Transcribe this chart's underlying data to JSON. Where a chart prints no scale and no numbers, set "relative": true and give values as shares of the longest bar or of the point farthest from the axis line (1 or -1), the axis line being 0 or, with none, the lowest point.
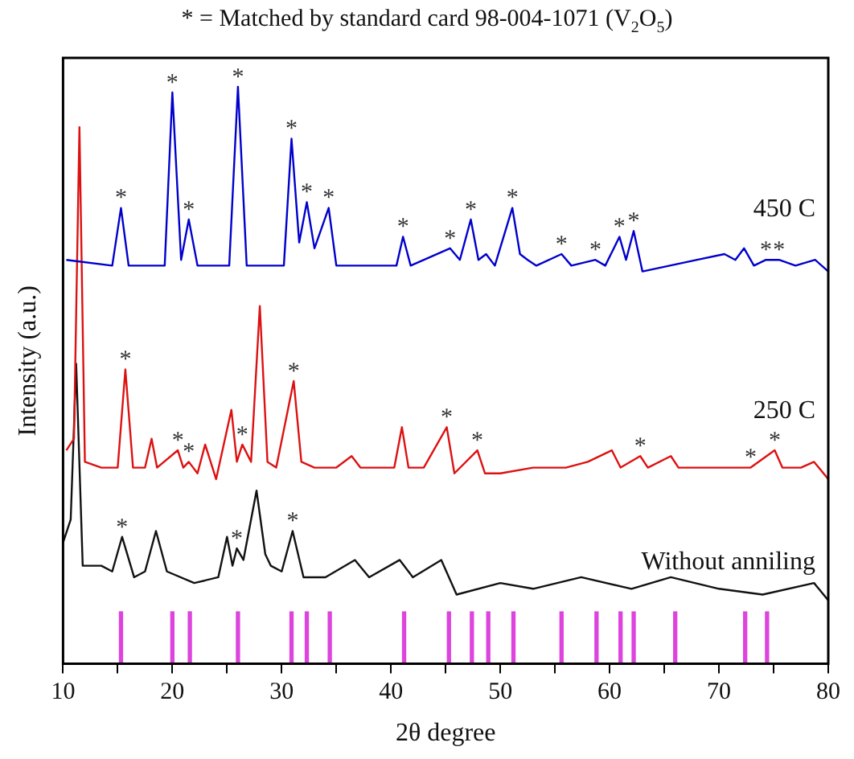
{
  "chart_data": {
    "type": "line",
    "relative": true,
    "title": "* = Matched by standard card 98-004-1071 (V$_{2}$O$_{5}$)",
    "xlabel": "2θ degree",
    "ylabel": "Intensity (a.u.)",
    "xlim": [
      10,
      80
    ],
    "xticks": [
      10,
      {
        "value": 15,
        "label": null
      },
      20,
      {
        "value": 25,
        "label": null
      },
      30,
      {
        "value": 35,
        "label": null
      },
      40,
      {
        "value": 45,
        "label": null
      },
      50,
      {
        "value": 55,
        "label": null
      },
      60,
      {
        "value": 65,
        "label": null
      },
      70,
      {
        "value": 75,
        "label": null
      },
      80
    ],
    "grid": false,
    "legend": false,
    "marker": "none",
    "line_style": "solid",
    "series": [
      {
        "name": "450 C",
        "color": "#0000cc",
        "x": [
          10.3,
          14.5,
          15.3,
          16.0,
          19.3,
          20.0,
          20.8,
          21.5,
          22.3,
          25.2,
          26.0,
          26.8,
          30.2,
          30.9,
          31.6,
          32.3,
          33.0,
          34.3,
          35.0,
          40.5,
          41.1,
          41.8,
          45.4,
          46.3,
          47.3,
          48.0,
          48.7,
          49.5,
          51.1,
          51.8,
          52.5,
          53.3,
          55.6,
          56.5,
          58.7,
          59.6,
          60.9,
          61.5,
          62.2,
          63.0,
          68,
          70.5,
          71.5,
          72.3,
          73.2,
          74.3,
          75.5,
          77,
          78.8,
          80
        ],
        "values": [
          0.7,
          0.69,
          0.79,
          0.69,
          0.69,
          0.99,
          0.7,
          0.77,
          0.69,
          0.69,
          1.0,
          0.69,
          0.69,
          0.91,
          0.73,
          0.8,
          0.72,
          0.79,
          0.69,
          0.69,
          0.74,
          0.69,
          0.72,
          0.7,
          0.77,
          0.7,
          0.71,
          0.69,
          0.79,
          0.71,
          0.7,
          0.69,
          0.71,
          0.69,
          0.7,
          0.69,
          0.74,
          0.7,
          0.75,
          0.68,
          0.7,
          0.71,
          0.7,
          0.72,
          0.69,
          0.7,
          0.7,
          0.69,
          0.7,
          0.68
        ]
      },
      {
        "name": "250 C",
        "color": "#dd1111",
        "x": [
          10.3,
          11.0,
          11.5,
          12.0,
          13.5,
          15.0,
          15.7,
          16.4,
          17.5,
          18.1,
          18.6,
          20.5,
          21.0,
          21.5,
          22.3,
          23.0,
          24.0,
          25.4,
          25.9,
          26.4,
          27.2,
          28.0,
          28.7,
          29.5,
          31.1,
          31.8,
          33.0,
          35,
          36.4,
          37.2,
          40.3,
          41.0,
          41.6,
          43,
          45.1,
          45.8,
          47.9,
          48.6,
          50,
          53,
          56,
          58,
          60.2,
          61,
          62.8,
          63.5,
          65.6,
          66.3,
          69,
          72.9,
          75.1,
          75.8,
          77.5,
          78.7,
          80
        ],
        "values": [
          0.37,
          0.39,
          0.93,
          0.35,
          0.34,
          0.34,
          0.51,
          0.34,
          0.34,
          0.39,
          0.34,
          0.37,
          0.34,
          0.35,
          0.33,
          0.38,
          0.32,
          0.44,
          0.35,
          0.38,
          0.35,
          0.62,
          0.35,
          0.34,
          0.49,
          0.35,
          0.34,
          0.34,
          0.36,
          0.34,
          0.34,
          0.41,
          0.34,
          0.34,
          0.41,
          0.33,
          0.37,
          0.33,
          0.33,
          0.34,
          0.34,
          0.35,
          0.37,
          0.34,
          0.36,
          0.34,
          0.36,
          0.34,
          0.34,
          0.34,
          0.37,
          0.34,
          0.34,
          0.35,
          0.32
        ]
      },
      {
        "name": "Without anniling",
        "color": "#111111",
        "x": [
          10.0,
          10.7,
          11.2,
          11.8,
          13.5,
          14.5,
          15.4,
          16.5,
          17.5,
          18.5,
          19.5,
          22,
          24.2,
          25.0,
          25.5,
          25.9,
          26.5,
          27.7,
          28.5,
          29,
          30.0,
          31.0,
          32,
          34,
          36.7,
          38,
          40.8,
          42,
          44.6,
          46,
          50,
          53,
          57.4,
          62,
          65.6,
          70,
          74,
          78.7,
          80
        ],
        "values": [
          0.21,
          0.25,
          0.52,
          0.17,
          0.17,
          0.16,
          0.22,
          0.15,
          0.16,
          0.23,
          0.16,
          0.14,
          0.15,
          0.22,
          0.17,
          0.2,
          0.18,
          0.3,
          0.19,
          0.17,
          0.16,
          0.23,
          0.15,
          0.15,
          0.18,
          0.15,
          0.18,
          0.15,
          0.18,
          0.12,
          0.14,
          0.13,
          0.15,
          0.13,
          0.15,
          0.13,
          0.12,
          0.14,
          0.11
        ]
      },
      {
        "type": "bar",
        "color": "#dd44dd",
        "x": [
          15.3,
          20.0,
          21.6,
          26.0,
          30.9,
          32.3,
          34.4,
          41.2,
          45.3,
          47.4,
          48.9,
          51.2,
          55.6,
          58.8,
          61.0,
          62.2,
          66.0,
          72.4,
          74.4
        ],
        "values": [
          0.09,
          0.09,
          0.09,
          0.09,
          0.09,
          0.09,
          0.09,
          0.09,
          0.09,
          0.09,
          0.09,
          0.09,
          0.09,
          0.09,
          0.09,
          0.09,
          0.09,
          0.09,
          0.09
        ]
      }
    ],
    "annotations": [
      {
        "text": "*",
        "x": 15.3,
        "y": 0.79
      },
      {
        "text": "*",
        "x": 20.0,
        "y": 0.99
      },
      {
        "text": "*",
        "x": 21.5,
        "y": 0.77
      },
      {
        "text": "*",
        "x": 26.0,
        "y": 1.0
      },
      {
        "text": "*",
        "x": 30.9,
        "y": 0.91
      },
      {
        "text": "*",
        "x": 32.3,
        "y": 0.8
      },
      {
        "text": "*",
        "x": 34.3,
        "y": 0.79
      },
      {
        "text": "*",
        "x": 41.1,
        "y": 0.74
      },
      {
        "text": "*",
        "x": 45.4,
        "y": 0.72
      },
      {
        "text": "*",
        "x": 47.3,
        "y": 0.77
      },
      {
        "text": "*",
        "x": 51.1,
        "y": 0.79
      },
      {
        "text": "*",
        "x": 55.6,
        "y": 0.71
      },
      {
        "text": "*",
        "x": 58.7,
        "y": 0.7
      },
      {
        "text": "*",
        "x": 60.9,
        "y": 0.74
      },
      {
        "text": "*",
        "x": 62.2,
        "y": 0.75
      },
      {
        "text": "*",
        "x": 74.3,
        "y": 0.7
      },
      {
        "text": "*",
        "x": 75.5,
        "y": 0.7
      },
      {
        "text": "*",
        "x": 15.7,
        "y": 0.51
      },
      {
        "text": "*",
        "x": 20.5,
        "y": 0.37
      },
      {
        "text": "*",
        "x": 21.5,
        "y": 0.35
      },
      {
        "text": "*",
        "x": 26.4,
        "y": 0.38
      },
      {
        "text": "*",
        "x": 31.1,
        "y": 0.49
      },
      {
        "text": "*",
        "x": 45.1,
        "y": 0.41
      },
      {
        "text": "*",
        "x": 47.9,
        "y": 0.37
      },
      {
        "text": "*",
        "x": 62.8,
        "y": 0.36
      },
      {
        "text": "*",
        "x": 72.9,
        "y": 0.34
      },
      {
        "text": "*",
        "x": 75.1,
        "y": 0.37
      },
      {
        "text": "*",
        "x": 15.4,
        "y": 0.22
      },
      {
        "text": "*",
        "x": 25.9,
        "y": 0.2
      },
      {
        "text": "*",
        "x": 31.0,
        "y": 0.23
      }
    ]
  }
}
